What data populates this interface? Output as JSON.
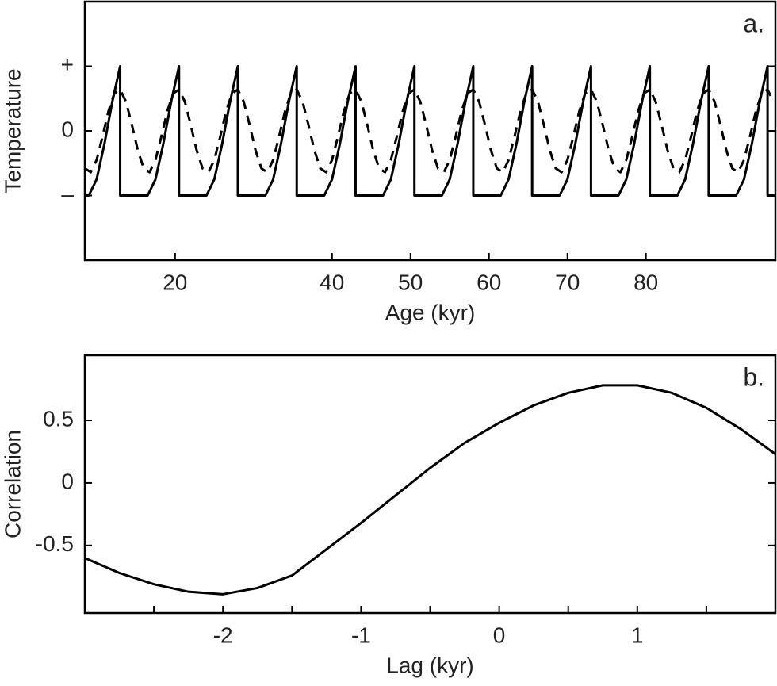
{
  "chart_data": [
    {
      "type": "line",
      "annotation": "a.",
      "xlabel": "Age (kyr)",
      "ylabel": "Temperature",
      "xlim": [
        8.5,
        96.5
      ],
      "xticks": [
        20,
        40,
        50,
        60,
        70,
        80
      ],
      "ylim": [
        -2,
        2
      ],
      "yticks": [
        {
          "value": 1,
          "label": "+"
        },
        0,
        {
          "value": -1,
          "label": "–"
        }
      ],
      "series": [
        {
          "color": "#000000",
          "dash": false,
          "x": [
            8.5,
            9,
            10,
            11,
            12,
            13,
            13,
            16.5,
            17.5,
            18.5,
            19.5,
            20.5,
            20.5,
            24,
            25,
            26,
            27,
            28,
            28,
            31.5,
            32.5,
            33.5,
            34.5,
            35.5,
            35.5,
            39,
            40,
            41,
            42,
            43,
            43,
            46.5,
            47.5,
            48.5,
            49.5,
            50.5,
            50.5,
            54,
            55,
            56,
            57,
            58,
            58,
            61.5,
            62.5,
            63.5,
            64.5,
            65.5,
            65.5,
            69,
            70,
            71,
            72,
            73,
            73,
            76.5,
            77.5,
            78.5,
            79.5,
            80.5,
            80.5,
            84,
            85,
            86,
            87,
            88,
            88,
            91.5,
            92.5,
            93.5,
            94.5,
            95.5,
            95.5,
            96.5
          ],
          "values": [
            -1,
            -1,
            -0.75,
            -0.2,
            0.45,
            1,
            -1,
            -1,
            -0.75,
            -0.2,
            0.45,
            1,
            -1,
            -1,
            -0.75,
            -0.2,
            0.45,
            1,
            -1,
            -1,
            -0.75,
            -0.2,
            0.45,
            1,
            -1,
            -1,
            -0.75,
            -0.2,
            0.45,
            1,
            -1,
            -1,
            -0.75,
            -0.2,
            0.45,
            1,
            -1,
            -1,
            -0.75,
            -0.2,
            0.45,
            1,
            -1,
            -1,
            -0.75,
            -0.2,
            0.45,
            1,
            -1,
            -1,
            -0.75,
            -0.2,
            0.45,
            1,
            -1,
            -1,
            -0.75,
            -0.2,
            0.45,
            1,
            -1,
            -1,
            -0.75,
            -0.2,
            0.45,
            1,
            -1,
            -1,
            -0.75,
            -0.2,
            0.45,
            1,
            -1,
            -1
          ]
        },
        {
          "color": "#000000",
          "dash": true,
          "x": [
            8.5,
            9.25,
            10,
            10.75,
            11.5,
            12.25,
            13,
            13.75,
            14.5,
            15.25,
            16,
            16.75,
            17.5,
            18.25,
            19,
            19.75,
            20.5,
            21.25,
            22,
            22.75,
            23.5,
            24.25,
            25,
            25.75,
            26.5,
            27.25,
            28,
            28.75,
            29.5,
            30.25,
            31,
            31.75,
            32.5,
            33.25,
            34,
            34.75,
            35.5,
            36.25,
            37,
            37.75,
            38.5,
            39.25,
            40,
            40.75,
            41.5,
            42.25,
            43,
            43.75,
            44.5,
            45.25,
            46,
            46.75,
            47.5,
            48.25,
            49,
            49.75,
            50.5,
            51.25,
            52,
            52.75,
            53.5,
            54.25,
            55,
            55.75,
            56.5,
            57.25,
            58,
            58.75,
            59.5,
            60.25,
            61,
            61.75,
            62.5,
            63.25,
            64,
            64.75,
            65.5,
            66.25,
            67,
            67.75,
            68.5,
            69.25,
            70,
            70.75,
            71.5,
            72.25,
            73,
            73.75,
            74.5,
            75.25,
            76,
            76.75,
            77.5,
            78.25,
            79,
            79.75,
            80.5,
            81.25,
            82,
            82.75,
            83.5,
            84.25,
            85,
            85.75,
            86.5,
            87.25,
            88,
            88.75,
            89.5,
            90.25,
            91,
            91.75,
            92.5,
            93.25,
            94,
            94.75,
            95.5,
            96.25
          ],
          "values": [
            -0.58,
            -0.64,
            -0.45,
            -0.09,
            0.3,
            0.58,
            0.64,
            0.45,
            0.09,
            -0.3,
            -0.58,
            -0.64,
            -0.45,
            -0.09,
            0.3,
            0.58,
            0.64,
            0.45,
            0.09,
            -0.3,
            -0.58,
            -0.64,
            -0.45,
            -0.09,
            0.3,
            0.58,
            0.64,
            0.45,
            0.09,
            -0.3,
            -0.58,
            -0.64,
            -0.45,
            -0.09,
            0.3,
            0.58,
            0.64,
            0.45,
            0.09,
            -0.3,
            -0.58,
            -0.64,
            -0.45,
            -0.09,
            0.3,
            0.58,
            0.64,
            0.45,
            0.09,
            -0.3,
            -0.58,
            -0.64,
            -0.45,
            -0.09,
            0.3,
            0.58,
            0.64,
            0.45,
            0.09,
            -0.3,
            -0.58,
            -0.64,
            -0.45,
            -0.09,
            0.3,
            0.58,
            0.64,
            0.45,
            0.09,
            -0.3,
            -0.58,
            -0.64,
            -0.45,
            -0.09,
            0.3,
            0.58,
            0.64,
            0.45,
            0.09,
            -0.3,
            -0.58,
            -0.64,
            -0.45,
            -0.09,
            0.3,
            0.58,
            0.64,
            0.45,
            0.09,
            -0.3,
            -0.58,
            -0.64,
            -0.45,
            -0.09,
            0.3,
            0.58,
            0.64,
            0.45,
            0.09,
            -0.3,
            -0.58,
            -0.64,
            -0.45,
            -0.09,
            0.3,
            0.58,
            0.64,
            0.45,
            0.09,
            -0.3,
            -0.58,
            -0.64,
            -0.45,
            -0.09,
            0.3,
            0.58,
            0.64,
            0.45
          ]
        }
      ]
    },
    {
      "type": "line",
      "annotation": "b.",
      "xlabel": "Lag (kyr)",
      "ylabel": "Correlation",
      "xlim": [
        -3,
        2
      ],
      "xticks": [
        -2,
        -1,
        0,
        1
      ],
      "xminor": [
        -2.5,
        -1.5,
        -0.5,
        0.5,
        1.5
      ],
      "ylim": [
        -1.04,
        1.02
      ],
      "yticks": [
        0.5,
        0,
        -0.5
      ],
      "series": [
        {
          "color": "#000000",
          "dash": false,
          "x": [
            -3,
            -2.75,
            -2.5,
            -2.25,
            -2,
            -1.75,
            -1.5,
            -1.25,
            -1,
            -0.75,
            -0.5,
            -0.25,
            0,
            0.25,
            0.5,
            0.75,
            1,
            1.25,
            1.5,
            1.75,
            2
          ],
          "values": [
            -0.6,
            -0.72,
            -0.81,
            -0.87,
            -0.89,
            -0.84,
            -0.74,
            -0.53,
            -0.32,
            -0.1,
            0.12,
            0.32,
            0.48,
            0.62,
            0.72,
            0.78,
            0.78,
            0.72,
            0.6,
            0.43,
            0.23
          ]
        }
      ]
    }
  ]
}
